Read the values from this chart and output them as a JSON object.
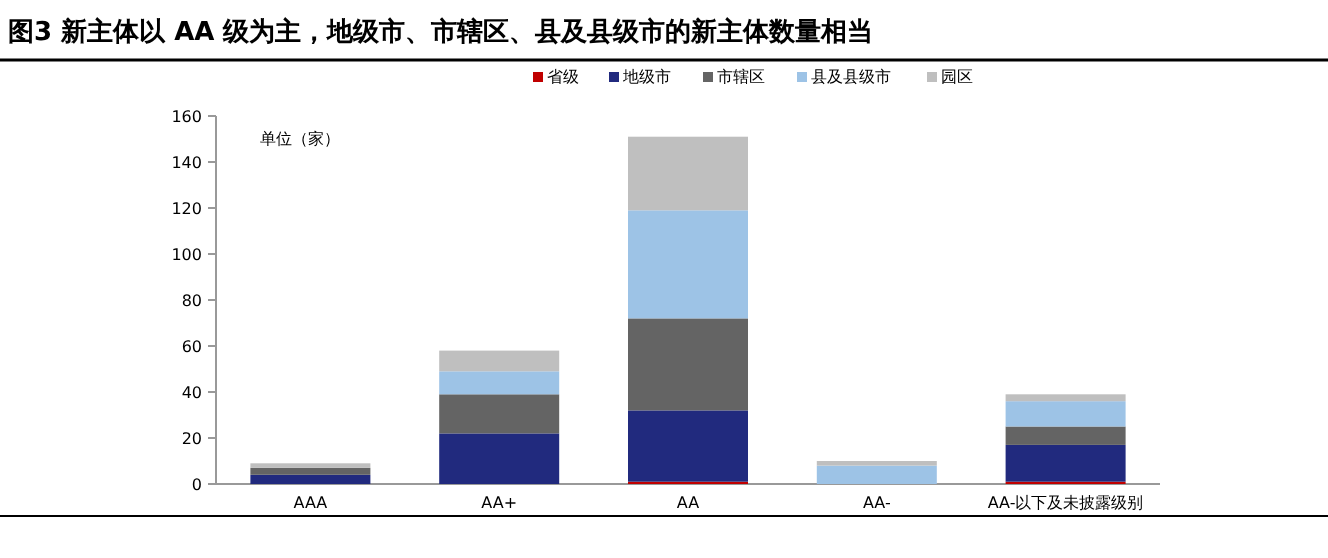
{
  "chart_data": {
    "type": "bar",
    "title": "图3  新主体以 AA 级为主，地级市、市辖区、县及县级市的新主体数量相当",
    "annotations": [
      "单位（家）"
    ],
    "categories": [
      "AAA",
      "AA+",
      "AA",
      "AA-",
      "AA-以下及未披露级别"
    ],
    "stacked": true,
    "legend": "top",
    "ylim": [
      0,
      160
    ],
    "yticks": [
      0,
      20,
      40,
      60,
      80,
      100,
      120,
      140,
      160
    ],
    "series": [
      {
        "name": "省级",
        "color": "#c00000",
        "values": [
          0,
          0,
          1,
          0,
          1
        ]
      },
      {
        "name": "地级市",
        "color": "#212a7e",
        "values": [
          4,
          22,
          31,
          0,
          16
        ]
      },
      {
        "name": "市辖区",
        "color": "#646464",
        "values": [
          3,
          17,
          40,
          0,
          8
        ]
      },
      {
        "name": "县及县级市",
        "color": "#9dc3e6",
        "values": [
          0,
          10,
          47,
          8,
          11
        ]
      },
      {
        "name": "园区",
        "color": "#bfbfbf",
        "values": [
          2,
          9,
          32,
          2,
          3
        ]
      }
    ]
  }
}
